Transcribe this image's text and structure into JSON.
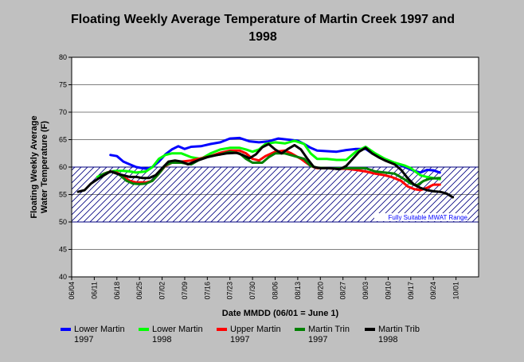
{
  "chart_data": {
    "type": "line",
    "title": "Floating Weekly Average Temperature of Martin Creek 1997 and 1998",
    "xlabel": "Date MMDD (06/01 = June 1)",
    "ylabel": "Floating Weekly Average Water Temperature (F)",
    "ylim": [
      40,
      80
    ],
    "y_ticks": [
      40,
      45,
      50,
      55,
      60,
      65,
      70,
      75,
      80
    ],
    "x_ticks": [
      "06/04",
      "06/11",
      "06/18",
      "06/25",
      "07/02",
      "07/09",
      "07/16",
      "07/23",
      "07/30",
      "08/06",
      "08/13",
      "08/20",
      "08/27",
      "09/03",
      "09/10",
      "09/17",
      "09/24",
      "10/01"
    ],
    "x_tick_days": [
      4,
      11,
      18,
      25,
      32,
      39,
      46,
      53,
      60,
      67,
      74,
      81,
      88,
      95,
      102,
      109,
      116,
      123
    ],
    "xlim_days": [
      4,
      130
    ],
    "band": {
      "low": 50,
      "high": 60,
      "label": "Fully Suitable MWAT Range"
    },
    "grid": true,
    "legend_placement": "bottom",
    "series": [
      {
        "name": "Lower Martin 1997",
        "color": "#0000ff",
        "points": [
          [
            16,
            62.2
          ],
          [
            18,
            62
          ],
          [
            20,
            61
          ],
          [
            22,
            60.5
          ],
          [
            24,
            60
          ],
          [
            27,
            59.7
          ],
          [
            29,
            60
          ],
          [
            31,
            61
          ],
          [
            33,
            62.3
          ],
          [
            35,
            63.2
          ],
          [
            37,
            63.8
          ],
          [
            39,
            63.3
          ],
          [
            41,
            63.7
          ],
          [
            44,
            63.8
          ],
          [
            47,
            64.2
          ],
          [
            50,
            64.5
          ],
          [
            53,
            65.2
          ],
          [
            56,
            65.3
          ],
          [
            59,
            64.7
          ],
          [
            62,
            64.5
          ],
          [
            65,
            64.7
          ],
          [
            68,
            65.2
          ],
          [
            71,
            65
          ],
          [
            74,
            64.8
          ],
          [
            76,
            64.2
          ],
          [
            78,
            63.5
          ],
          [
            80,
            63
          ],
          [
            83,
            62.9
          ],
          [
            86,
            62.8
          ],
          [
            89,
            63.1
          ],
          [
            92,
            63.3
          ],
          [
            95,
            63.3
          ],
          [
            97,
            62.5
          ],
          [
            99,
            62
          ],
          [
            101,
            61.5
          ],
          [
            103,
            61
          ],
          [
            106,
            60.3
          ],
          [
            108,
            59.8
          ],
          [
            110,
            59.3
          ],
          [
            112,
            59
          ],
          [
            114,
            59.5
          ],
          [
            116,
            59.4
          ],
          [
            118,
            59
          ]
        ]
      },
      {
        "name": "Lower Martin 1998",
        "color": "#00ff00",
        "points": [
          [
            12,
            58.2
          ],
          [
            14,
            58.8
          ],
          [
            16,
            59.2
          ],
          [
            18,
            59.3
          ],
          [
            20,
            59.3
          ],
          [
            22,
            59.2
          ],
          [
            24,
            59
          ],
          [
            27,
            59.2
          ],
          [
            29,
            60
          ],
          [
            31,
            61.5
          ],
          [
            33,
            62.2
          ],
          [
            35,
            62.5
          ],
          [
            38,
            62.5
          ],
          [
            41,
            61.8
          ],
          [
            44,
            61.5
          ],
          [
            47,
            62.5
          ],
          [
            50,
            63.2
          ],
          [
            53,
            63.5
          ],
          [
            56,
            63.5
          ],
          [
            58,
            63.2
          ],
          [
            60,
            62.8
          ],
          [
            62,
            63.2
          ],
          [
            64,
            64.2
          ],
          [
            67,
            64.5
          ],
          [
            70,
            64.3
          ],
          [
            73,
            64.8
          ],
          [
            76,
            64.2
          ],
          [
            78,
            62.5
          ],
          [
            80,
            61.5
          ],
          [
            83,
            61.5
          ],
          [
            86,
            61.3
          ],
          [
            89,
            61.3
          ],
          [
            92,
            62.8
          ],
          [
            95,
            63.7
          ],
          [
            98,
            62.5
          ],
          [
            101,
            61.5
          ],
          [
            104,
            60.8
          ],
          [
            107,
            60.3
          ],
          [
            109,
            59.8
          ],
          [
            112,
            58.5
          ],
          [
            114,
            58.2
          ],
          [
            116,
            58
          ],
          [
            118,
            57.8
          ]
        ]
      },
      {
        "name": "Upper Martin 1997",
        "color": "#ff0000",
        "points": [
          [
            14,
            58.8
          ],
          [
            16,
            59.2
          ],
          [
            18,
            59
          ],
          [
            20,
            58.2
          ],
          [
            22,
            57.5
          ],
          [
            24,
            57.2
          ],
          [
            27,
            57.2
          ],
          [
            29,
            57.5
          ],
          [
            31,
            58.8
          ],
          [
            33,
            60.2
          ],
          [
            35,
            60.8
          ],
          [
            38,
            61
          ],
          [
            41,
            61.2
          ],
          [
            44,
            61.6
          ],
          [
            47,
            62
          ],
          [
            50,
            62.6
          ],
          [
            53,
            63
          ],
          [
            56,
            63
          ],
          [
            58,
            62.5
          ],
          [
            60,
            61.5
          ],
          [
            62,
            61.2
          ],
          [
            64,
            62
          ],
          [
            67,
            62.8
          ],
          [
            70,
            63
          ],
          [
            72,
            62.5
          ],
          [
            75,
            61.5
          ],
          [
            78,
            60.2
          ],
          [
            80,
            59.8
          ],
          [
            83,
            59.8
          ],
          [
            86,
            59.7
          ],
          [
            89,
            59.7
          ],
          [
            92,
            59.5
          ],
          [
            95,
            59.2
          ],
          [
            98,
            58.8
          ],
          [
            101,
            58.5
          ],
          [
            103,
            58.2
          ],
          [
            106,
            57.5
          ],
          [
            108,
            56.5
          ],
          [
            110,
            56
          ],
          [
            112,
            55.8
          ],
          [
            114,
            56.2
          ],
          [
            116,
            56.8
          ],
          [
            118,
            56.8
          ]
        ]
      },
      {
        "name": "Martin Trin 1997",
        "color": "#008000",
        "points": [
          [
            13,
            58.5
          ],
          [
            15,
            59
          ],
          [
            17,
            59.2
          ],
          [
            19,
            58.5
          ],
          [
            21,
            57.5
          ],
          [
            23,
            57
          ],
          [
            25,
            56.9
          ],
          [
            27,
            57
          ],
          [
            29,
            57.5
          ],
          [
            31,
            58.8
          ],
          [
            33,
            60.3
          ],
          [
            35,
            60.8
          ],
          [
            38,
            60.8
          ],
          [
            41,
            60.5
          ],
          [
            44,
            61.5
          ],
          [
            47,
            62
          ],
          [
            50,
            62.3
          ],
          [
            53,
            62.8
          ],
          [
            56,
            62.5
          ],
          [
            58,
            61.5
          ],
          [
            60,
            60.8
          ],
          [
            63,
            60.8
          ],
          [
            65,
            61.8
          ],
          [
            67,
            62.5
          ],
          [
            70,
            62.5
          ],
          [
            73,
            62
          ],
          [
            76,
            61.5
          ],
          [
            78,
            60.2
          ],
          [
            80,
            59.9
          ],
          [
            83,
            59.8
          ],
          [
            86,
            59.8
          ],
          [
            89,
            59.8
          ],
          [
            92,
            59.8
          ],
          [
            95,
            59.8
          ],
          [
            98,
            59.2
          ],
          [
            101,
            59
          ],
          [
            104,
            58.8
          ],
          [
            107,
            57.8
          ],
          [
            109,
            57
          ],
          [
            111,
            56.7
          ],
          [
            113,
            57.5
          ],
          [
            115,
            57.9
          ],
          [
            118,
            58
          ]
        ]
      },
      {
        "name": "Martin Trib 1998",
        "color": "#000000",
        "points": [
          [
            6,
            55.5
          ],
          [
            8,
            55.8
          ],
          [
            10,
            57
          ],
          [
            12,
            57.8
          ],
          [
            14,
            58.5
          ],
          [
            16,
            59.2
          ],
          [
            18,
            58.8
          ],
          [
            20,
            58.5
          ],
          [
            22,
            58.2
          ],
          [
            24,
            58.2
          ],
          [
            26,
            58
          ],
          [
            28,
            58
          ],
          [
            30,
            58.5
          ],
          [
            32,
            59.8
          ],
          [
            34,
            61
          ],
          [
            36,
            61.2
          ],
          [
            38,
            61
          ],
          [
            40,
            60.5
          ],
          [
            43,
            61.2
          ],
          [
            46,
            61.8
          ],
          [
            49,
            62.2
          ],
          [
            52,
            62.5
          ],
          [
            55,
            62.6
          ],
          [
            57,
            62.2
          ],
          [
            59,
            61.6
          ],
          [
            61,
            62.3
          ],
          [
            63,
            63.6
          ],
          [
            65,
            64.2
          ],
          [
            67,
            63.2
          ],
          [
            69,
            62.5
          ],
          [
            71,
            63.3
          ],
          [
            73,
            64
          ],
          [
            75,
            63.2
          ],
          [
            77,
            61.5
          ],
          [
            79,
            60
          ],
          [
            81,
            59.8
          ],
          [
            84,
            59.8
          ],
          [
            87,
            59.6
          ],
          [
            89,
            60.2
          ],
          [
            91,
            61.5
          ],
          [
            93,
            62.8
          ],
          [
            95,
            63.5
          ],
          [
            97,
            62.5
          ],
          [
            99,
            61.8
          ],
          [
            101,
            61.2
          ],
          [
            104,
            60.5
          ],
          [
            106,
            59.5
          ],
          [
            108,
            58
          ],
          [
            110,
            56.8
          ],
          [
            112,
            56.2
          ],
          [
            114,
            55.8
          ],
          [
            116,
            55.6
          ],
          [
            118,
            55.5
          ],
          [
            120,
            55.2
          ],
          [
            122,
            54.5
          ]
        ]
      }
    ],
    "legend": [
      {
        "label": "Lower Martin\n1997",
        "color": "#0000ff"
      },
      {
        "label": "Lower Martin\n1998",
        "color": "#00ff00"
      },
      {
        "label": "Upper Martin\n1997",
        "color": "#ff0000"
      },
      {
        "label": "Martin Trin\n1997",
        "color": "#008000"
      },
      {
        "label": "Martin Trib\n1998",
        "color": "#000000"
      }
    ]
  }
}
